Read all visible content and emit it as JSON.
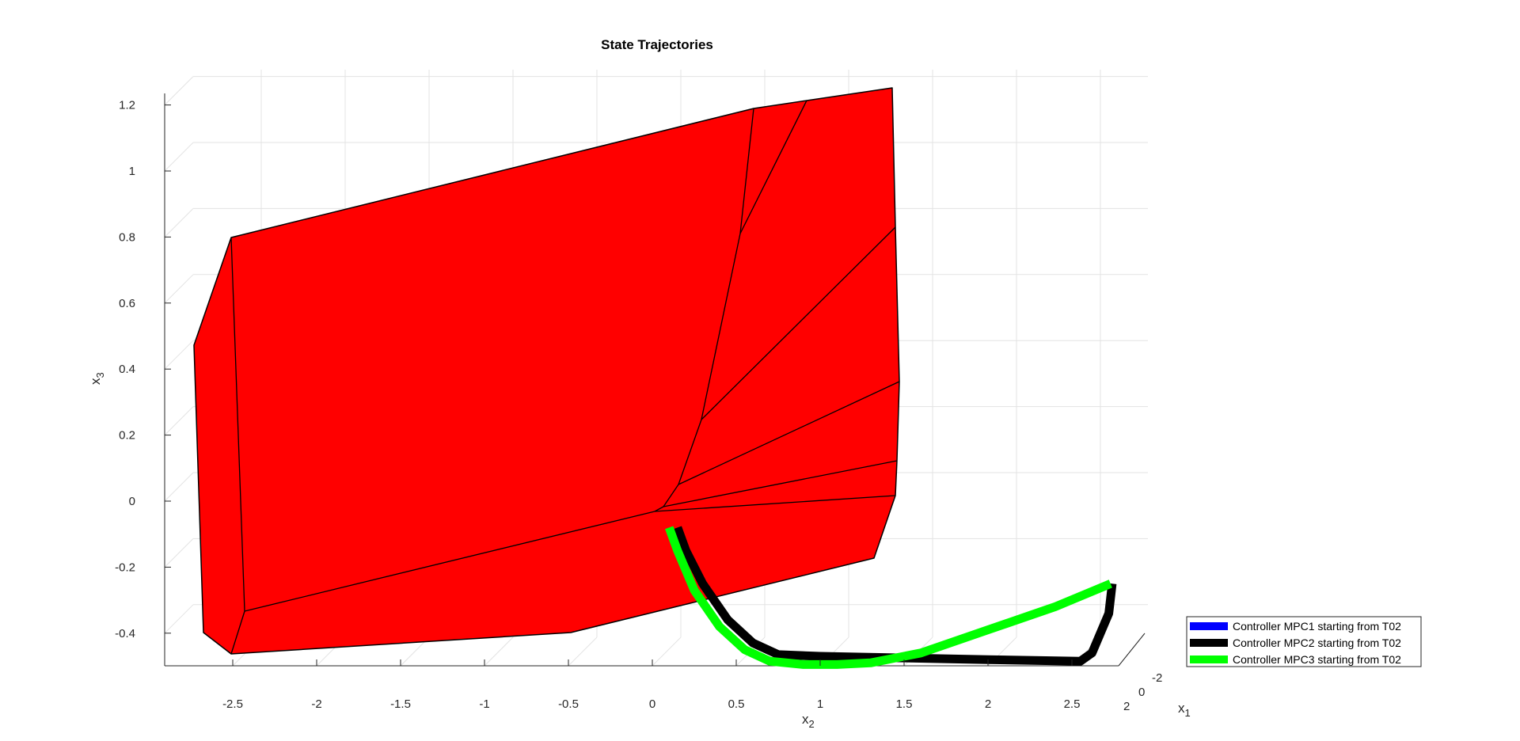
{
  "chart_data": {
    "type": "line",
    "title": "State Trajectories",
    "xlabel": "x",
    "xlabel_sub": "2",
    "ylabel": "x",
    "ylabel_sub": "3",
    "zlabel": "x",
    "zlabel_sub": "1",
    "x2_ticks": [
      "-2.5",
      "-2",
      "-1.5",
      "-1",
      "-0.5",
      "0",
      "0.5",
      "1",
      "1.5",
      "2",
      "2.5"
    ],
    "x3_ticks": [
      "-0.4",
      "-0.2",
      "0",
      "0.2",
      "0.4",
      "0.6",
      "0.8",
      "1",
      "1.2"
    ],
    "x1_ticks": [
      "-2",
      "0",
      "2"
    ],
    "x2_range": [
      -2.85,
      2.75
    ],
    "x3_range": [
      -0.5,
      1.3
    ],
    "grid": true,
    "legend_position": "right",
    "region_color": "#ff0000",
    "legend": [
      {
        "label": "Controller MPC1 starting from T02",
        "color": "#0000ff"
      },
      {
        "label": "Controller MPC2 starting from T02",
        "color": "#000000"
      },
      {
        "label": "Controller MPC3 starting from T02",
        "color": "#00ff00"
      }
    ],
    "series": [
      {
        "name": "Controller MPC2 starting from T02",
        "color": "#000000",
        "points": [
          [
            0.15,
            -0.08
          ],
          [
            0.2,
            -0.15
          ],
          [
            0.3,
            -0.25
          ],
          [
            0.45,
            -0.36
          ],
          [
            0.6,
            -0.43
          ],
          [
            0.75,
            -0.465
          ],
          [
            1.0,
            -0.47
          ],
          [
            1.5,
            -0.475
          ],
          [
            2.0,
            -0.48
          ],
          [
            2.55,
            -0.485
          ],
          [
            2.62,
            -0.46
          ],
          [
            2.72,
            -0.34
          ],
          [
            2.74,
            -0.25
          ]
        ]
      },
      {
        "name": "Controller MPC3 starting from T02",
        "color": "#00ff00",
        "points": [
          [
            0.1,
            -0.08
          ],
          [
            0.15,
            -0.15
          ],
          [
            0.25,
            -0.27
          ],
          [
            0.4,
            -0.38
          ],
          [
            0.55,
            -0.45
          ],
          [
            0.7,
            -0.485
          ],
          [
            0.9,
            -0.495
          ],
          [
            1.1,
            -0.495
          ],
          [
            1.3,
            -0.49
          ],
          [
            1.6,
            -0.46
          ],
          [
            2.0,
            -0.39
          ],
          [
            2.4,
            -0.32
          ],
          [
            2.73,
            -0.25
          ]
        ]
      }
    ]
  }
}
